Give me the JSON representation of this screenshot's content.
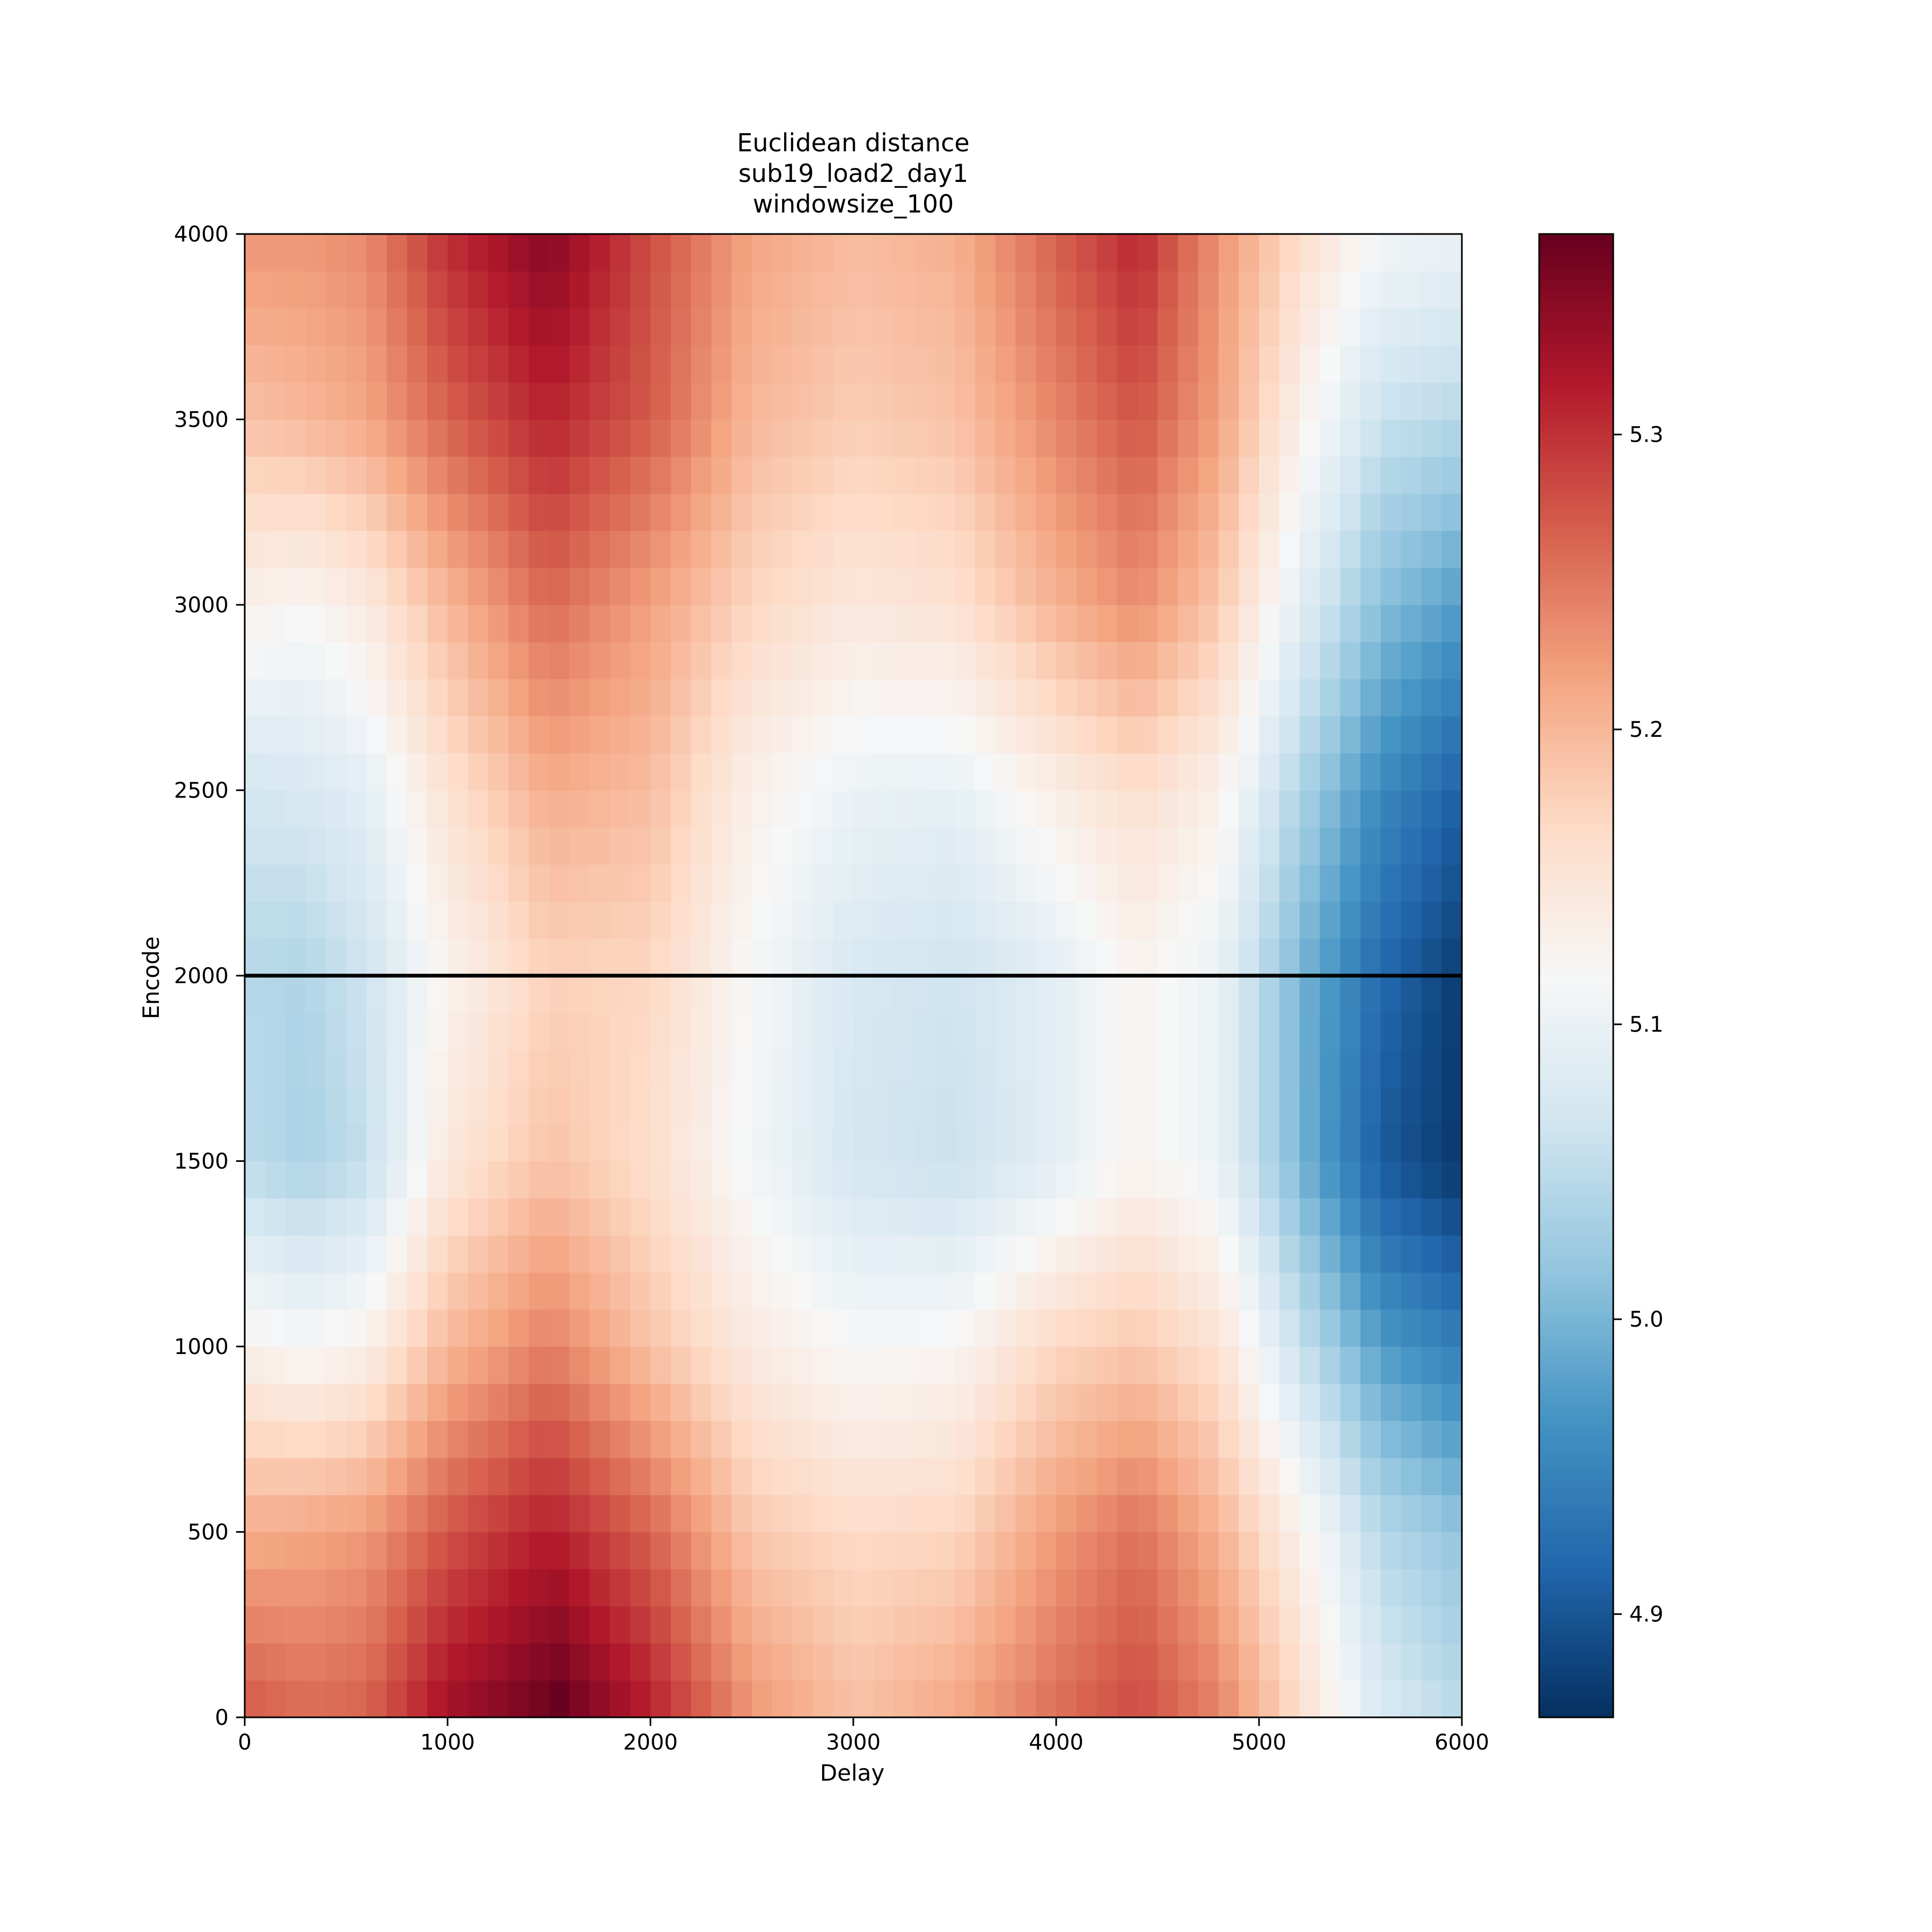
{
  "chart_data": {
    "type": "heatmap",
    "title": [
      "Euclidean distance",
      "sub19_load2_day1",
      "windowsize_100"
    ],
    "xlabel": "Delay",
    "ylabel": "Encode",
    "xlim": [
      0,
      6000
    ],
    "ylim": [
      0,
      4000
    ],
    "x_ticks": [
      0,
      1000,
      2000,
      3000,
      4000,
      5000,
      6000
    ],
    "y_ticks": [
      0,
      500,
      1000,
      1500,
      2000,
      2500,
      3000,
      3500,
      4000
    ],
    "x_tick_labels": [
      "0",
      "1000",
      "2000",
      "3000",
      "4000",
      "5000",
      "6000"
    ],
    "y_tick_labels": [
      "0",
      "500",
      "1000",
      "1500",
      "2000",
      "2500",
      "3000",
      "3500",
      "4000"
    ],
    "cell_size": 100,
    "colormap": "RdBu_r",
    "colorbar": {
      "vmin": 4.865,
      "vmax": 5.368,
      "ticks": [
        4.9,
        5.0,
        5.1,
        5.2,
        5.3
      ],
      "tick_labels": [
        "4.9",
        "5.0",
        "5.1",
        "5.2",
        "5.3"
      ]
    },
    "hline": {
      "y": 2000,
      "color": "#000000"
    },
    "grid": false,
    "row_values": [
      {
        "encode": 50,
        "points": [
          [
            0,
            5.268
          ],
          [
            300,
            5.255
          ],
          [
            600,
            5.262
          ],
          [
            1000,
            5.325
          ],
          [
            1550,
            5.365
          ],
          [
            2000,
            5.31
          ],
          [
            2500,
            5.225
          ],
          [
            3000,
            5.19
          ],
          [
            3500,
            5.21
          ],
          [
            4000,
            5.255
          ],
          [
            4400,
            5.28
          ],
          [
            4800,
            5.24
          ],
          [
            5200,
            5.16
          ],
          [
            5600,
            5.075
          ],
          [
            6000,
            5.045
          ]
        ]
      },
      {
        "encode": 500,
        "points": [
          [
            0,
            5.21
          ],
          [
            300,
            5.215
          ],
          [
            600,
            5.225
          ],
          [
            1000,
            5.275
          ],
          [
            1500,
            5.315
          ],
          [
            2000,
            5.265
          ],
          [
            2500,
            5.185
          ],
          [
            3000,
            5.165
          ],
          [
            3500,
            5.17
          ],
          [
            4000,
            5.225
          ],
          [
            4400,
            5.255
          ],
          [
            4800,
            5.205
          ],
          [
            5200,
            5.13
          ],
          [
            5600,
            5.045
          ],
          [
            6000,
            5.015
          ]
        ]
      },
      {
        "encode": 1000,
        "points": [
          [
            0,
            5.13
          ],
          [
            300,
            5.115
          ],
          [
            600,
            5.13
          ],
          [
            1000,
            5.2
          ],
          [
            1500,
            5.245
          ],
          [
            2000,
            5.19
          ],
          [
            2500,
            5.14
          ],
          [
            3000,
            5.115
          ],
          [
            3500,
            5.12
          ],
          [
            4000,
            5.17
          ],
          [
            4400,
            5.185
          ],
          [
            4800,
            5.155
          ],
          [
            5200,
            5.06
          ],
          [
            5600,
            4.975
          ],
          [
            6000,
            4.94
          ]
        ]
      },
      {
        "encode": 1500,
        "points": [
          [
            0,
            5.05
          ],
          [
            300,
            5.035
          ],
          [
            600,
            5.055
          ],
          [
            1000,
            5.145
          ],
          [
            1500,
            5.19
          ],
          [
            2000,
            5.16
          ],
          [
            2500,
            5.11
          ],
          [
            3000,
            5.07
          ],
          [
            3500,
            5.06
          ],
          [
            4000,
            5.09
          ],
          [
            4400,
            5.125
          ],
          [
            4800,
            5.1
          ],
          [
            5200,
            5.0
          ],
          [
            5600,
            4.905
          ],
          [
            6000,
            4.87
          ]
        ]
      },
      {
        "encode": 2000,
        "points": [
          [
            0,
            5.045
          ],
          [
            300,
            5.04
          ],
          [
            600,
            5.065
          ],
          [
            1000,
            5.125
          ],
          [
            1500,
            5.175
          ],
          [
            2000,
            5.17
          ],
          [
            2500,
            5.115
          ],
          [
            3000,
            5.075
          ],
          [
            3500,
            5.065
          ],
          [
            4000,
            5.09
          ],
          [
            4400,
            5.125
          ],
          [
            4800,
            5.1
          ],
          [
            5200,
            5.0
          ],
          [
            5600,
            4.92
          ],
          [
            6000,
            4.875
          ]
        ]
      },
      {
        "encode": 2500,
        "points": [
          [
            0,
            5.07
          ],
          [
            300,
            5.075
          ],
          [
            600,
            5.09
          ],
          [
            1000,
            5.155
          ],
          [
            1500,
            5.21
          ],
          [
            2000,
            5.195
          ],
          [
            2500,
            5.13
          ],
          [
            3000,
            5.1
          ],
          [
            3500,
            5.095
          ],
          [
            4000,
            5.135
          ],
          [
            4400,
            5.16
          ],
          [
            4800,
            5.13
          ],
          [
            5200,
            5.04
          ],
          [
            5600,
            4.955
          ],
          [
            6000,
            4.91
          ]
        ]
      },
      {
        "encode": 3000,
        "points": [
          [
            0,
            5.13
          ],
          [
            300,
            5.12
          ],
          [
            600,
            5.14
          ],
          [
            1000,
            5.2
          ],
          [
            1500,
            5.26
          ],
          [
            2000,
            5.22
          ],
          [
            2500,
            5.17
          ],
          [
            3000,
            5.145
          ],
          [
            3500,
            5.155
          ],
          [
            4000,
            5.205
          ],
          [
            4400,
            5.235
          ],
          [
            4800,
            5.185
          ],
          [
            5200,
            5.09
          ],
          [
            5600,
            5.01
          ],
          [
            6000,
            4.975
          ]
        ]
      },
      {
        "encode": 3500,
        "points": [
          [
            0,
            5.19
          ],
          [
            300,
            5.2
          ],
          [
            600,
            5.215
          ],
          [
            1000,
            5.265
          ],
          [
            1500,
            5.31
          ],
          [
            2000,
            5.27
          ],
          [
            2500,
            5.2
          ],
          [
            3000,
            5.18
          ],
          [
            3500,
            5.19
          ],
          [
            4000,
            5.24
          ],
          [
            4400,
            5.275
          ],
          [
            4800,
            5.22
          ],
          [
            5200,
            5.13
          ],
          [
            5600,
            5.06
          ],
          [
            6000,
            5.045
          ]
        ]
      },
      {
        "encode": 3950,
        "points": [
          [
            0,
            5.225
          ],
          [
            300,
            5.225
          ],
          [
            600,
            5.235
          ],
          [
            1000,
            5.3
          ],
          [
            1500,
            5.345
          ],
          [
            2000,
            5.28
          ],
          [
            2500,
            5.215
          ],
          [
            3000,
            5.195
          ],
          [
            3500,
            5.205
          ],
          [
            4000,
            5.265
          ],
          [
            4400,
            5.305
          ],
          [
            4800,
            5.23
          ],
          [
            5200,
            5.16
          ],
          [
            5600,
            5.105
          ],
          [
            6000,
            5.095
          ]
        ]
      }
    ]
  }
}
